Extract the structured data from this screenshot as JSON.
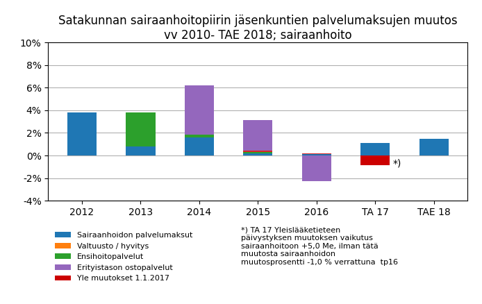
{
  "chart_data": {
    "type": "bar",
    "stacked": true,
    "title": "Satakunnan sairaanhoitopiirin jäsenkuntien palvelumaksujen muutos\nvv 2010- TAE 2018; sairaanhoito",
    "categories": [
      "2012",
      "2013",
      "2014",
      "2015",
      "2016",
      "TA 17",
      "TAE 18"
    ],
    "series": [
      {
        "name": "Sairaanhoidon palvelumaksut",
        "values": [
          3.8,
          0.8,
          1.6,
          0.2,
          0.1,
          1.1,
          1.5
        ]
      },
      {
        "name": "Valtuusto / hyvitys",
        "values": [
          0.0,
          0.0,
          0.0,
          0.0,
          0.0,
          0.0,
          0.0
        ]
      },
      {
        "name": "Ensihoitopalvelut",
        "values": [
          0.0,
          3.0,
          0.25,
          0.12,
          0.0,
          0.0,
          0.0
        ]
      },
      {
        "values": [
          0.0,
          0.0,
          0.0,
          0.08,
          0.08,
          0.0,
          0.0
        ]
      },
      {
        "name": "Erityistason ostopalvelut",
        "values": [
          0.0,
          0.0,
          4.35,
          2.75,
          -2.25,
          0.0,
          0.0
        ]
      },
      {
        "name": "Yle muutokset 1.1.2017",
        "color": "#cc0000",
        "values": [
          0.0,
          0.0,
          0.0,
          0.0,
          0.0,
          -0.85,
          0.0
        ]
      }
    ],
    "ylim": [
      -4,
      10
    ],
    "yticks": [
      {
        "value": -4,
        "label": "-4%"
      },
      {
        "value": -2,
        "label": "-2%"
      },
      {
        "value": 0,
        "label": "0%"
      },
      {
        "value": 2,
        "label": "2%"
      },
      {
        "value": 4,
        "label": "4%"
      },
      {
        "value": 6,
        "label": "6%"
      },
      {
        "value": 8,
        "label": "8%"
      },
      {
        "value": 10,
        "label": "10%"
      }
    ],
    "grid": true,
    "legend": "upper left",
    "annotations": [
      {
        "text": "*)",
        "category": "TA 17"
      },
      {
        "text": "*) TA 17 Yleislääketieteen\npäivystyksen muutoksen vaikutus\nsairaanhoitoon +5,0 Me, ilman tätä\nmuutosta sairaanhoidon\nmuutosprosentti -1,0 % verrattuna  tp16"
      }
    ]
  }
}
